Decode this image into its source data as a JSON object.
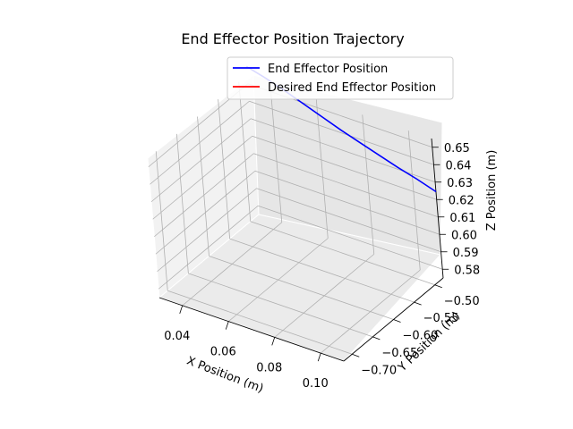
{
  "chart_data": {
    "type": "line",
    "projection": "3d",
    "title": "End Effector Position Trajectory",
    "xlabel": "X Position (m)",
    "ylabel": "Y Position (m)",
    "zlabel": "Z Position (m)",
    "xlim": [
      0.03,
      0.11
    ],
    "ylim": [
      -0.72,
      -0.48
    ],
    "zlim": [
      0.575,
      0.655
    ],
    "x_ticks": [
      "0.04",
      "0.06",
      "0.08",
      "0.10"
    ],
    "y_ticks": [
      "−0.70",
      "−0.65",
      "−0.60",
      "−0.55",
      "−0.50"
    ],
    "z_ticks": [
      "0.58",
      "0.59",
      "0.60",
      "0.61",
      "0.62",
      "0.63",
      "0.64",
      "0.65"
    ],
    "grid": true,
    "legend_position": "top-right",
    "series": [
      {
        "name": "End Effector Position",
        "color": "#0000ff",
        "points": [
          {
            "x": 0.03,
            "y": -0.48,
            "z": 0.66
          },
          {
            "x": 0.038,
            "y": -0.48,
            "z": 0.657
          },
          {
            "x": 0.046,
            "y": -0.48,
            "z": 0.6535
          },
          {
            "x": 0.054,
            "y": -0.48,
            "z": 0.6495
          },
          {
            "x": 0.062,
            "y": -0.48,
            "z": 0.6455
          },
          {
            "x": 0.07,
            "y": -0.48,
            "z": 0.6415
          },
          {
            "x": 0.078,
            "y": -0.48,
            "z": 0.638
          },
          {
            "x": 0.086,
            "y": -0.48,
            "z": 0.6345
          },
          {
            "x": 0.094,
            "y": -0.48,
            "z": 0.631
          },
          {
            "x": 0.102,
            "y": -0.48,
            "z": 0.628
          },
          {
            "x": 0.11,
            "y": -0.48,
            "z": 0.6245
          }
        ]
      },
      {
        "name": "Desired End Effector Position",
        "color": "#ff0000",
        "points": []
      }
    ]
  }
}
